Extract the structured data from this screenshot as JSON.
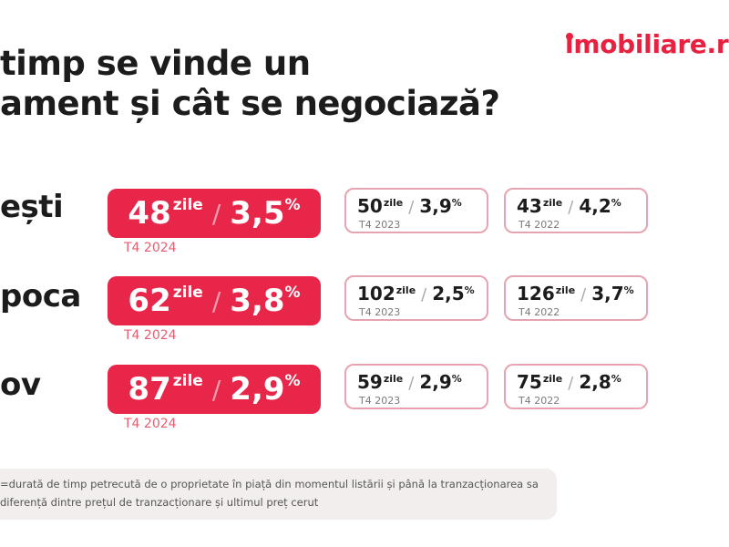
{
  "header": {
    "title_line1": "timp se vinde un",
    "title_line2": "ament și cât se negociază?",
    "logo_text_pre": "i",
    "logo_text_post": "mobiliare.r"
  },
  "rows": [
    {
      "city": "ești",
      "current": {
        "days": "48",
        "unit": "zile",
        "discount": "3,5",
        "pct": "%",
        "period": "T4 2024"
      },
      "prev": [
        {
          "days": "50",
          "unit": "zile",
          "discount": "3,9",
          "pct": "%",
          "period": "T4 2023"
        },
        {
          "days": "43",
          "unit": "zile",
          "discount": "4,2",
          "pct": "%",
          "period": "T4 2022"
        }
      ]
    },
    {
      "city": "poca",
      "current": {
        "days": "62",
        "unit": "zile",
        "discount": "3,8",
        "pct": "%",
        "period": "T4 2024"
      },
      "prev": [
        {
          "days": "102",
          "unit": "zile",
          "discount": "2,5",
          "pct": "%",
          "period": "T4 2023"
        },
        {
          "days": "126",
          "unit": "zile",
          "discount": "3,7",
          "pct": "%",
          "period": "T4 2022"
        }
      ]
    },
    {
      "city": "ov",
      "current": {
        "days": "87",
        "unit": "zile",
        "discount": "2,9",
        "pct": "%",
        "period": "T4 2024"
      },
      "prev": [
        {
          "days": "59",
          "unit": "zile",
          "discount": "2,9",
          "pct": "%",
          "period": "T4 2023"
        },
        {
          "days": "75",
          "unit": "zile",
          "discount": "2,8",
          "pct": "%",
          "period": "T4 2022"
        }
      ]
    }
  ],
  "slash": "/",
  "footnote": {
    "line1": "=durată de timp petrecută de o proprietate în piață din momentul listării și până la tranzacționarea sa",
    "line2": "diferență dintre prețul de tranzacționare și ultimul preț cerut"
  },
  "colors": {
    "accent": "#e8264a",
    "logo": "#e7213f",
    "card_border": "#e8a3b2",
    "period_label": "#e85d6f"
  }
}
